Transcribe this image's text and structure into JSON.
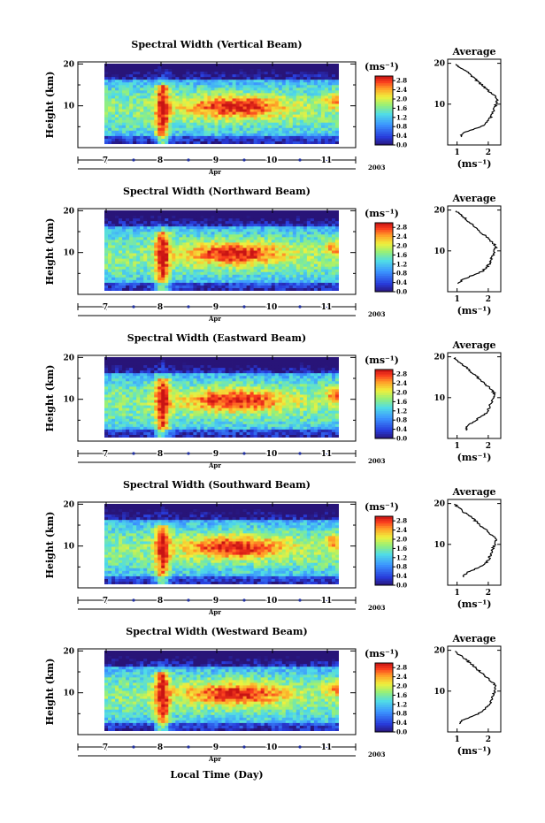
{
  "figure": {
    "bottom_xlabel": "Local Time (Day)",
    "unit_label": "(ms⁻¹)",
    "average_title": "Average",
    "ylabel": "Height (km)",
    "month_label": "Apr",
    "year_label": "2003"
  },
  "chart_data": [
    {
      "type": "heatmap",
      "title": "Spectral Width (Vertical Beam)",
      "ylabel": "Height (km)",
      "xlabel": "Apr",
      "year": "2003",
      "x_ticks": [
        "7",
        "8",
        "9",
        "10",
        "11"
      ],
      "y_ticks": [
        "10",
        "20"
      ],
      "colorbar": {
        "label": "(ms⁻¹)",
        "ticks": [
          "0.0",
          "0.4",
          "0.8",
          "1.2",
          "1.6",
          "2.0",
          "2.4",
          "2.8"
        ],
        "range": [
          0,
          3.0
        ]
      },
      "average_profile": {
        "title": "Average",
        "xlabel": "(ms⁻¹)",
        "x_ticks": [
          "1",
          "2"
        ],
        "y_ticks": [
          "10",
          "20"
        ],
        "heights": [
          2,
          3,
          4,
          5,
          6,
          7,
          8,
          9,
          10,
          11,
          12,
          13,
          14,
          15,
          16,
          17,
          18,
          19,
          20
        ],
        "values": [
          1.1,
          1.2,
          1.6,
          1.9,
          2.0,
          2.1,
          2.15,
          2.2,
          2.25,
          2.3,
          2.2,
          2.05,
          1.9,
          1.75,
          1.6,
          1.45,
          1.3,
          1.1,
          0.9
        ]
      }
    },
    {
      "type": "heatmap",
      "title": "Spectral Width (Northward Beam)",
      "ylabel": "Height (km)",
      "xlabel": "Apr",
      "year": "2003",
      "x_ticks": [
        "7",
        "8",
        "9",
        "10",
        "11"
      ],
      "y_ticks": [
        "10",
        "20"
      ],
      "colorbar": {
        "label": "(ms⁻¹)",
        "ticks": [
          "0.0",
          "0.4",
          "0.8",
          "1.2",
          "1.6",
          "2.0",
          "2.4",
          "2.8"
        ],
        "range": [
          0,
          3.0
        ]
      },
      "average_profile": {
        "title": "Average",
        "xlabel": "(ms⁻¹)",
        "x_ticks": [
          "1",
          "2"
        ],
        "y_ticks": [
          "10",
          "20"
        ],
        "heights": [
          2,
          3,
          4,
          5,
          6,
          7,
          8,
          9,
          10,
          11,
          12,
          13,
          14,
          15,
          16,
          17,
          18,
          19,
          20
        ],
        "values": [
          1.0,
          1.2,
          1.5,
          1.8,
          1.95,
          2.05,
          2.1,
          2.15,
          2.2,
          2.25,
          2.15,
          2.0,
          1.85,
          1.7,
          1.55,
          1.4,
          1.25,
          1.1,
          0.9
        ]
      }
    },
    {
      "type": "heatmap",
      "title": "Spectral Width (Eastward Beam)",
      "ylabel": "Height (km)",
      "xlabel": "Apr",
      "year": "2003",
      "x_ticks": [
        "7",
        "8",
        "9",
        "10",
        "11"
      ],
      "y_ticks": [
        "10",
        "20"
      ],
      "colorbar": {
        "label": "(ms⁻¹)",
        "ticks": [
          "0.0",
          "0.4",
          "0.8",
          "1.2",
          "1.6",
          "2.0",
          "2.4",
          "2.8"
        ],
        "range": [
          0,
          3.0
        ]
      },
      "average_profile": {
        "title": "Average",
        "xlabel": "(ms⁻¹)",
        "x_ticks": [
          "1",
          "2"
        ],
        "y_ticks": [
          "10",
          "20"
        ],
        "heights": [
          2,
          3,
          4,
          5,
          6,
          7,
          8,
          9,
          10,
          11,
          12,
          13,
          14,
          15,
          16,
          17,
          18,
          19,
          20
        ],
        "values": [
          1.3,
          1.3,
          1.5,
          1.7,
          1.9,
          2.0,
          2.05,
          2.1,
          2.15,
          2.2,
          2.1,
          1.95,
          1.8,
          1.65,
          1.5,
          1.35,
          1.2,
          1.0,
          0.9
        ]
      }
    },
    {
      "type": "heatmap",
      "title": "Spectral Width (Southward Beam)",
      "ylabel": "Height (km)",
      "xlabel": "Apr",
      "year": "2003",
      "x_ticks": [
        "7",
        "8",
        "9",
        "10",
        "11"
      ],
      "y_ticks": [
        "10",
        "20"
      ],
      "colorbar": {
        "label": "(ms⁻¹)",
        "ticks": [
          "0.0",
          "0.4",
          "0.8",
          "1.2",
          "1.6",
          "2.0",
          "2.4",
          "2.8"
        ],
        "range": [
          0,
          3.0
        ]
      },
      "average_profile": {
        "title": "Average",
        "xlabel": "(ms⁻¹)",
        "x_ticks": [
          "1",
          "2"
        ],
        "y_ticks": [
          "10",
          "20"
        ],
        "heights": [
          2,
          3,
          4,
          5,
          6,
          7,
          8,
          9,
          10,
          11,
          12,
          13,
          14,
          15,
          16,
          17,
          18,
          19,
          20
        ],
        "values": [
          1.2,
          1.3,
          1.6,
          1.85,
          2.0,
          2.05,
          2.1,
          2.15,
          2.2,
          2.25,
          2.15,
          2.0,
          1.85,
          1.7,
          1.55,
          1.4,
          1.2,
          1.05,
          0.9
        ]
      }
    },
    {
      "type": "heatmap",
      "title": "Spectral Width (Westward Beam)",
      "ylabel": "Height (km)",
      "xlabel": "Apr",
      "year": "2003",
      "x_ticks": [
        "7",
        "8",
        "9",
        "10",
        "11"
      ],
      "y_ticks": [
        "10",
        "20"
      ],
      "colorbar": {
        "label": "(ms⁻¹)",
        "ticks": [
          "0.0",
          "0.4",
          "0.8",
          "1.2",
          "1.6",
          "2.0",
          "2.4",
          "2.8"
        ],
        "range": [
          0,
          3.0
        ]
      },
      "average_profile": {
        "title": "Average",
        "xlabel": "(ms⁻¹)",
        "x_ticks": [
          "1",
          "2"
        ],
        "y_ticks": [
          "10",
          "20"
        ],
        "heights": [
          2,
          3,
          4,
          5,
          6,
          7,
          8,
          9,
          10,
          11,
          12,
          13,
          14,
          15,
          16,
          17,
          18,
          19,
          20
        ],
        "values": [
          1.1,
          1.2,
          1.55,
          1.8,
          1.95,
          2.05,
          2.1,
          2.15,
          2.2,
          2.25,
          2.15,
          2.0,
          1.85,
          1.7,
          1.55,
          1.4,
          1.25,
          1.05,
          0.9
        ]
      }
    }
  ]
}
